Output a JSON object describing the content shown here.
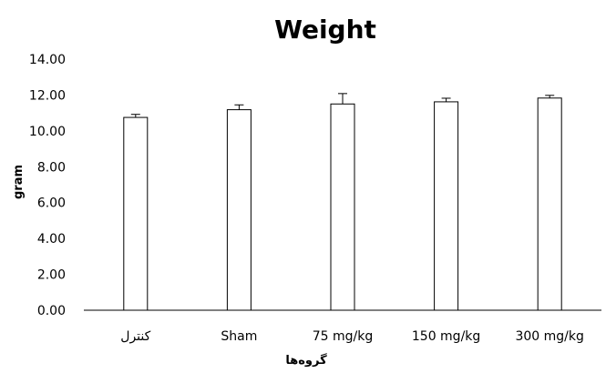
{
  "chart_data": {
    "type": "bar",
    "title": "Weight",
    "xlabel": "گروه‌ها",
    "ylabel": "gram",
    "categories": [
      "کنترل",
      "Sham",
      "75 mg/kg",
      "150 mg/kg",
      "300 mg/kg"
    ],
    "values": [
      10.75,
      11.18,
      11.5,
      11.62,
      11.83
    ],
    "errors": [
      0.17,
      0.27,
      0.58,
      0.2,
      0.15
    ],
    "ylim": [
      0,
      14
    ],
    "yticks": [
      "0.00",
      "2.00",
      "4.00",
      "6.00",
      "8.00",
      "10.00",
      "12.00",
      "14.00"
    ],
    "grid": false,
    "legend": "none",
    "bar_fill": "#ffffff",
    "bar_stroke": "#000000"
  }
}
